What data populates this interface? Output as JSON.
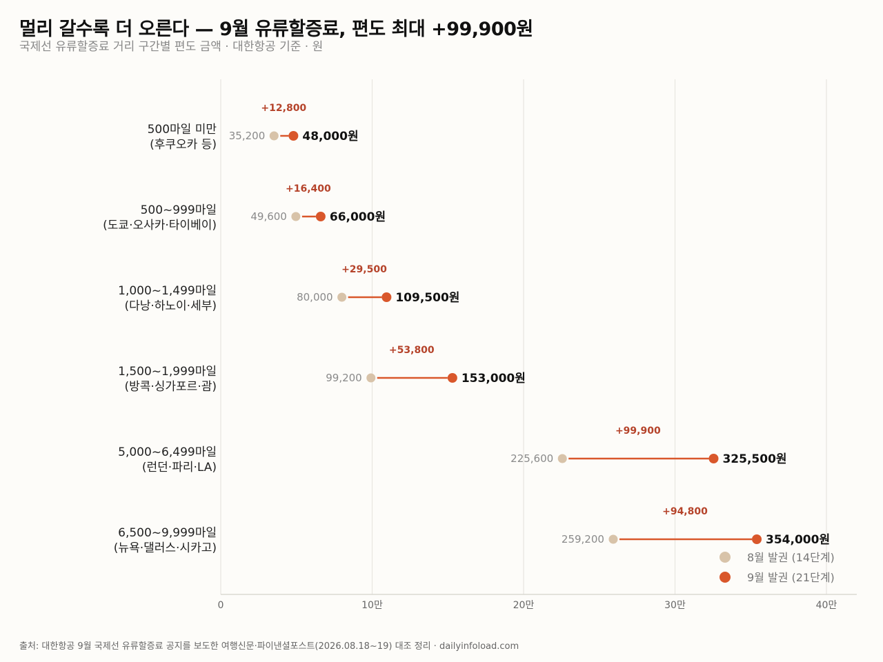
{
  "header": {
    "title": "멀리 갈수록 더 오른다 — 9월 유류할증료, 편도 최대 +99,900원",
    "subtitle": "국제선 유류할증료 거리 구간별 편도 금액 · 대한항공 기준 · 원"
  },
  "footer": {
    "source": "출처: 대한항공 9월 국제선 유류할증료 공지를 보도한 여행신문·파이낸셜포스트(2026.08.18~19) 대조 정리 · dailyinfoload.com"
  },
  "colors": {
    "august": "#d8c3a9",
    "september": "#d9572b",
    "connector": "#d9572b",
    "delta": "#b5432a",
    "grid": "#e8e6e1"
  },
  "chart_data": {
    "type": "dumbbell",
    "title": "멀리 갈수록 더 오른다 — 9월 유류할증료, 편도 최대 +99,900원",
    "subtitle": "국제선 유류할증료 거리 구간별 편도 금액 · 대한항공 기준 · 원",
    "xlim": [
      0,
      420000
    ],
    "x_ticks": [
      0,
      100000,
      200000,
      300000,
      400000
    ],
    "x_tick_labels": [
      "0",
      "10만",
      "20만",
      "30만",
      "40만"
    ],
    "grid": "vertical",
    "legend_position": "bottom-right",
    "series": [
      {
        "name": "8월 발권 (14단계)",
        "color": "#d8c3a9"
      },
      {
        "name": "9월 발권 (21단계)",
        "color": "#d9572b"
      }
    ],
    "rows": [
      {
        "line1": "500마일 미만",
        "line2": "(후쿠오카 등)",
        "aug": 35200,
        "sep": 48000,
        "aug_label": "35,200",
        "sep_label": "48,000원",
        "delta_label": "+12,800"
      },
      {
        "line1": "500~999마일",
        "line2": "(도쿄·오사카·타이베이)",
        "aug": 49600,
        "sep": 66000,
        "aug_label": "49,600",
        "sep_label": "66,000원",
        "delta_label": "+16,400"
      },
      {
        "line1": "1,000~1,499마일",
        "line2": "(다낭·하노이·세부)",
        "aug": 80000,
        "sep": 109500,
        "aug_label": "80,000",
        "sep_label": "109,500원",
        "delta_label": "+29,500"
      },
      {
        "line1": "1,500~1,999마일",
        "line2": "(방콕·싱가포르·괌)",
        "aug": 99200,
        "sep": 153000,
        "aug_label": "99,200",
        "sep_label": "153,000원",
        "delta_label": "+53,800"
      },
      {
        "line1": "5,000~6,499마일",
        "line2": "(런던·파리·LA)",
        "aug": 225600,
        "sep": 325500,
        "aug_label": "225,600",
        "sep_label": "325,500원",
        "delta_label": "+99,900"
      },
      {
        "line1": "6,500~9,999마일",
        "line2": "(뉴욕·댈러스·시카고)",
        "aug": 259200,
        "sep": 354000,
        "aug_label": "259,200",
        "sep_label": "354,000원",
        "delta_label": "+94,800"
      }
    ]
  }
}
